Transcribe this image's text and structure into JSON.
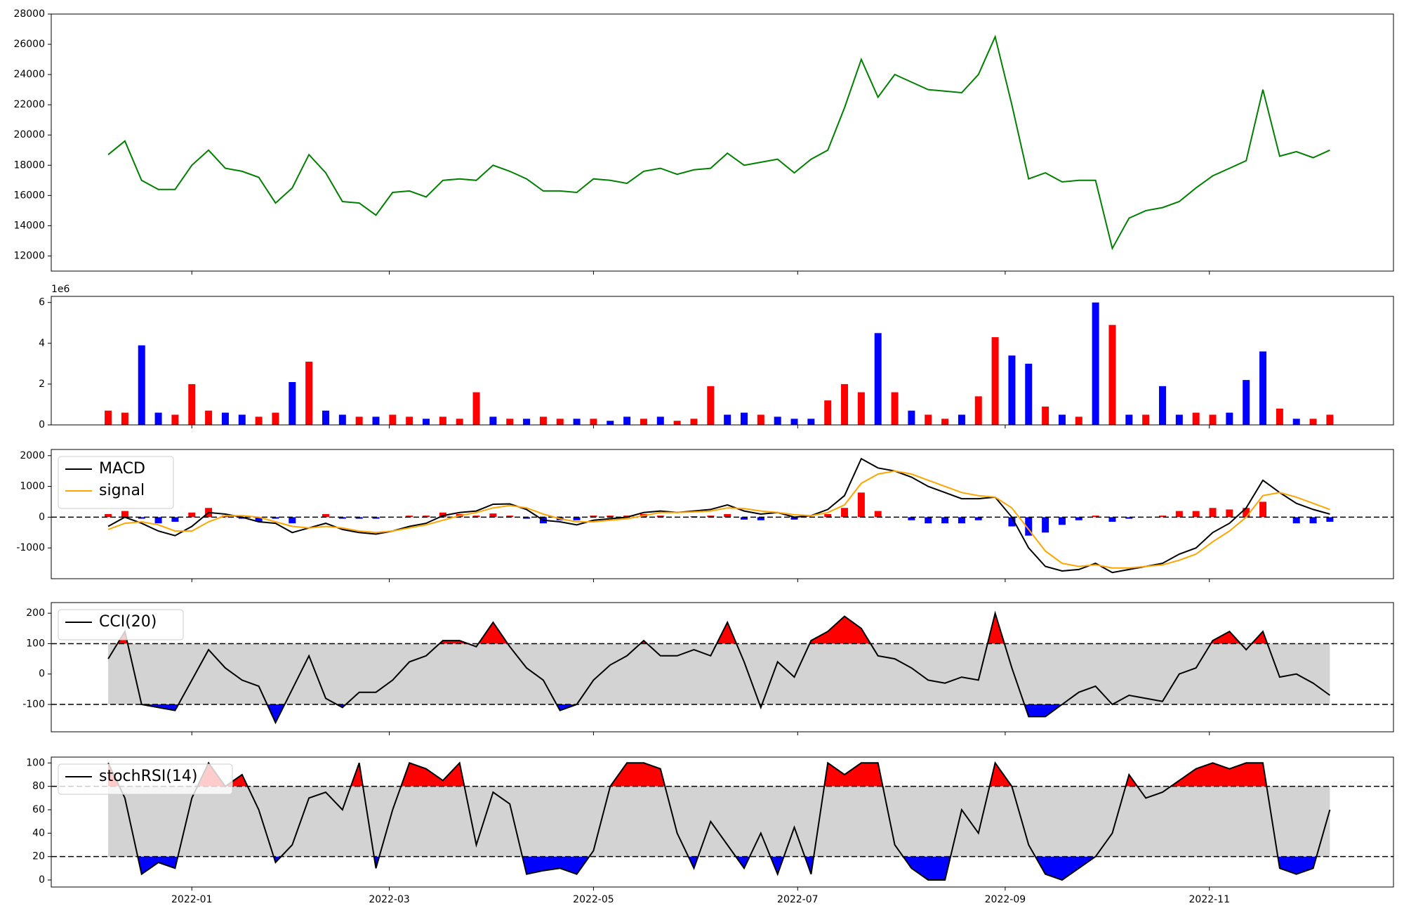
{
  "chart_data": [
    {
      "type": "line",
      "xlim": [
        "2021-11-20",
        "2022-12-26"
      ],
      "x": [
        "2021-12-07",
        "2021-12-12",
        "2021-12-17",
        "2021-12-22",
        "2021-12-27",
        "2022-01-01",
        "2022-01-06",
        "2022-01-11",
        "2022-01-16",
        "2022-01-21",
        "2022-01-26",
        "2022-01-31",
        "2022-02-05",
        "2022-02-10",
        "2022-02-15",
        "2022-02-20",
        "2022-02-25",
        "2022-03-02",
        "2022-03-07",
        "2022-03-12",
        "2022-03-17",
        "2022-03-22",
        "2022-03-27",
        "2022-04-01",
        "2022-04-06",
        "2022-04-11",
        "2022-04-16",
        "2022-04-21",
        "2022-04-26",
        "2022-05-01",
        "2022-05-06",
        "2022-05-11",
        "2022-05-16",
        "2022-05-21",
        "2022-05-26",
        "2022-05-31",
        "2022-06-05",
        "2022-06-10",
        "2022-06-15",
        "2022-06-20",
        "2022-06-25",
        "2022-06-30",
        "2022-07-05",
        "2022-07-10",
        "2022-07-15",
        "2022-07-20",
        "2022-07-25",
        "2022-07-30",
        "2022-08-04",
        "2022-08-09",
        "2022-08-14",
        "2022-08-19",
        "2022-08-24",
        "2022-08-29",
        "2022-09-03",
        "2022-09-08",
        "2022-09-13",
        "2022-09-18",
        "2022-09-23",
        "2022-09-28",
        "2022-10-03",
        "2022-10-08",
        "2022-10-13",
        "2022-10-18",
        "2022-10-23",
        "2022-10-28",
        "2022-11-02",
        "2022-11-07",
        "2022-11-12",
        "2022-11-17",
        "2022-11-22",
        "2022-11-27",
        "2022-12-02",
        "2022-12-07"
      ],
      "ylim": [
        11000,
        28000
      ],
      "yticks": [
        12000,
        14000,
        16000,
        18000,
        20000,
        22000,
        24000,
        26000,
        28000
      ],
      "series": [
        {
          "color": "#008000",
          "values": [
            18700,
            19600,
            17000,
            16400,
            16400,
            18000,
            19000,
            17800,
            17600,
            17200,
            15500,
            16500,
            18700,
            17500,
            15600,
            15500,
            14700,
            16200,
            16300,
            15900,
            17000,
            17100,
            17000,
            18000,
            17600,
            17100,
            16300,
            16300,
            16200,
            17100,
            17000,
            16800,
            17600,
            17800,
            17400,
            17700,
            17800,
            18800,
            18000,
            18200,
            18400,
            17500,
            18400,
            19000,
            21800,
            25000,
            22500,
            24000,
            23500,
            23000,
            22900,
            22800,
            24000,
            26500,
            22000,
            17100,
            17500,
            16900,
            17000,
            17000,
            12500,
            14500,
            15000,
            15200,
            15600,
            16500,
            17300,
            17800,
            18300,
            23000,
            18600,
            18900,
            18500,
            19000
          ]
        }
      ]
    },
    {
      "type": "bar",
      "ylim": [
        0,
        6300000
      ],
      "y_offset_label": "1e6",
      "yticks": [
        0,
        {
          "value": 2000000,
          "label": "2"
        },
        {
          "value": 4000000,
          "label": "4"
        },
        {
          "value": 6000000,
          "label": "6"
        }
      ],
      "values": [
        700000,
        600000,
        3900000,
        600000,
        500000,
        2000000,
        700000,
        600000,
        500000,
        400000,
        600000,
        2100000,
        3100000,
        700000,
        500000,
        400000,
        400000,
        500000,
        400000,
        300000,
        400000,
        300000,
        1600000,
        400000,
        300000,
        300000,
        400000,
        300000,
        300000,
        300000,
        200000,
        400000,
        300000,
        400000,
        200000,
        300000,
        1900000,
        500000,
        600000,
        500000,
        400000,
        300000,
        300000,
        1200000,
        2000000,
        1600000,
        4500000,
        1600000,
        700000,
        500000,
        300000,
        500000,
        1400000,
        4300000,
        3400000,
        3000000,
        900000,
        500000,
        400000,
        6000000,
        4900000,
        500000,
        500000,
        1900000,
        500000,
        600000,
        500000,
        600000,
        2200000,
        3600000,
        800000,
        300000,
        300000,
        500000
      ],
      "colors": [
        "red",
        "red",
        "blue",
        "blue",
        "red",
        "red",
        "red",
        "blue",
        "blue",
        "red",
        "red",
        "blue",
        "red",
        "blue",
        "blue",
        "red",
        "blue",
        "red",
        "red",
        "blue",
        "red",
        "red",
        "red",
        "blue",
        "red",
        "blue",
        "red",
        "red",
        "blue",
        "red",
        "blue",
        "blue",
        "red",
        "blue",
        "red",
        "red",
        "red",
        "blue",
        "blue",
        "red",
        "blue",
        "blue",
        "blue",
        "red",
        "red",
        "red",
        "blue",
        "red",
        "blue",
        "red",
        "red",
        "blue",
        "red",
        "red",
        "blue",
        "blue",
        "red",
        "blue",
        "red",
        "blue",
        "red",
        "blue",
        "red",
        "blue",
        "blue",
        "red",
        "red",
        "blue",
        "blue",
        "blue",
        "red",
        "blue",
        "red",
        "red"
      ]
    },
    {
      "type": "macd",
      "ylim": [
        -2000,
        2200
      ],
      "yticks": [
        -1000,
        0,
        1000,
        2000
      ],
      "zero_line": 0,
      "up_color": "red",
      "down_color": "blue",
      "series": [
        {
          "name": "MACD",
          "color": "#000000",
          "values": [
            -300,
            0,
            -200,
            -450,
            -600,
            -300,
            150,
            100,
            0,
            -150,
            -200,
            -500,
            -350,
            -200,
            -400,
            -500,
            -550,
            -450,
            -300,
            -200,
            50,
            150,
            200,
            420,
            430,
            250,
            -100,
            -150,
            -250,
            -100,
            -50,
            0,
            150,
            200,
            150,
            200,
            250,
            400,
            200,
            100,
            150,
            0,
            50,
            250,
            700,
            1900,
            1600,
            1500,
            1300,
            1000,
            800,
            600,
            600,
            650,
            0,
            -1000,
            -1600,
            -1750,
            -1700,
            -1500,
            -1800,
            -1700,
            -1600,
            -1500,
            -1200,
            -1000,
            -500,
            -200,
            300,
            1200,
            800,
            450,
            250,
            100
          ]
        },
        {
          "name": "signal",
          "color": "#ffa500",
          "values": [
            -400,
            -200,
            -150,
            -250,
            -450,
            -450,
            -150,
            50,
            50,
            0,
            -150,
            -300,
            -350,
            -300,
            -350,
            -450,
            -500,
            -450,
            -350,
            -250,
            -100,
            50,
            150,
            300,
            380,
            300,
            100,
            -50,
            -150,
            -150,
            -100,
            -50,
            50,
            150,
            150,
            170,
            200,
            300,
            280,
            200,
            150,
            80,
            50,
            150,
            400,
            1100,
            1400,
            1500,
            1400,
            1200,
            1000,
            800,
            700,
            650,
            300,
            -400,
            -1100,
            -1500,
            -1600,
            -1550,
            -1650,
            -1650,
            -1600,
            -1550,
            -1400,
            -1200,
            -800,
            -450,
            0,
            700,
            800,
            650,
            450,
            250
          ]
        }
      ],
      "histogram": [
        100,
        200,
        -50,
        -200,
        -150,
        150,
        300,
        50,
        -50,
        -150,
        -50,
        -200,
        0,
        100,
        -50,
        -50,
        -50,
        0,
        50,
        50,
        150,
        100,
        50,
        120,
        50,
        -50,
        -200,
        -100,
        -100,
        50,
        50,
        50,
        100,
        50,
        0,
        30,
        50,
        100,
        -80,
        -100,
        0,
        -80,
        0,
        100,
        300,
        800,
        200,
        0,
        -100,
        -200,
        -200,
        -200,
        -100,
        0,
        -300,
        -600,
        -500,
        -250,
        -100,
        50,
        -150,
        -50,
        0,
        50,
        200,
        200,
        300,
        250,
        300,
        500,
        0,
        -200,
        -200,
        -150
      ]
    },
    {
      "type": "oscillator",
      "ylim": [
        -190,
        235
      ],
      "yticks": [
        -100,
        0,
        100,
        200
      ],
      "levels": [
        100,
        -100
      ],
      "band_color": "#d3d3d3",
      "up_color": "red",
      "down_color": "blue",
      "series": [
        {
          "name": "CCI(20)",
          "color": "#000000",
          "values": [
            50,
            140,
            -100,
            -110,
            -120,
            -20,
            80,
            20,
            -20,
            -40,
            -160,
            -50,
            60,
            -80,
            -110,
            -60,
            -60,
            -20,
            40,
            60,
            110,
            110,
            90,
            170,
            90,
            20,
            -20,
            -120,
            -100,
            -20,
            30,
            60,
            110,
            60,
            60,
            80,
            60,
            170,
            40,
            -110,
            40,
            -10,
            110,
            140,
            190,
            150,
            60,
            50,
            20,
            -20,
            -30,
            -10,
            -20,
            200,
            20,
            -140,
            -140,
            -100,
            -60,
            -40,
            -100,
            -70,
            -80,
            -90,
            0,
            20,
            110,
            140,
            80,
            140,
            -10,
            0,
            -30,
            -70
          ]
        }
      ]
    },
    {
      "type": "oscillator",
      "ylim": [
        -6,
        105
      ],
      "yticks": [
        0,
        20,
        40,
        60,
        80,
        100
      ],
      "levels": [
        80,
        20
      ],
      "band_color": "#d3d3d3",
      "up_color": "red",
      "down_color": "blue",
      "xticks": [
        {
          "value": "2022-01-01",
          "label": "2022-01"
        },
        {
          "value": "2022-03-01",
          "label": "2022-03"
        },
        {
          "value": "2022-05-01",
          "label": "2022-05"
        },
        {
          "value": "2022-07-01",
          "label": "2022-07"
        },
        {
          "value": "2022-09-01",
          "label": "2022-09"
        },
        {
          "value": "2022-11-01",
          "label": "2022-11"
        }
      ],
      "series": [
        {
          "name": "stochRSI(14)",
          "color": "#000000",
          "values": [
            100,
            70,
            5,
            15,
            10,
            70,
            100,
            80,
            90,
            60,
            15,
            30,
            70,
            75,
            60,
            100,
            10,
            60,
            100,
            95,
            85,
            100,
            30,
            75,
            65,
            5,
            8,
            10,
            5,
            25,
            80,
            100,
            100,
            95,
            40,
            10,
            50,
            30,
            10,
            40,
            5,
            45,
            5,
            100,
            90,
            100,
            100,
            30,
            10,
            0,
            0,
            60,
            40,
            100,
            80,
            30,
            5,
            0,
            10,
            20,
            40,
            90,
            70,
            75,
            85,
            95,
            100,
            95,
            100,
            100,
            10,
            5,
            10,
            60
          ]
        }
      ]
    }
  ]
}
